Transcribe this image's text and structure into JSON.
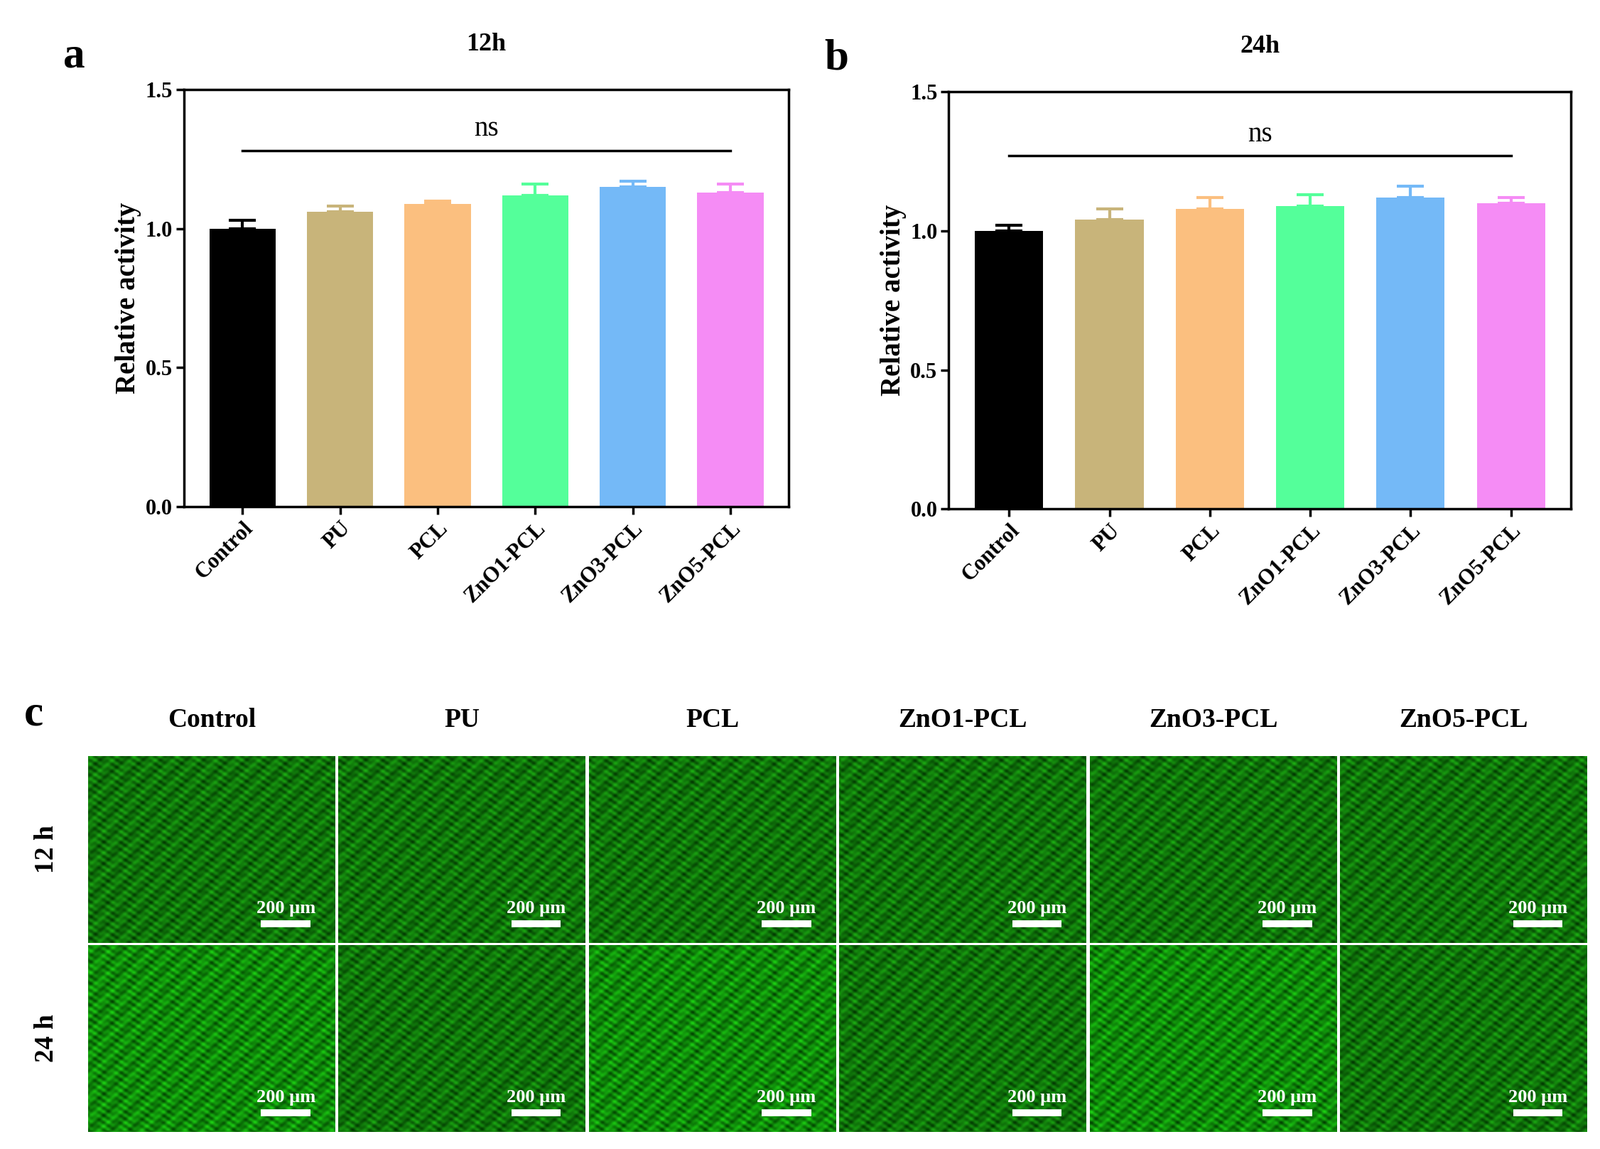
{
  "chart_data": [
    {
      "type": "bar",
      "panel_label": "a",
      "title": "12h",
      "y_label": "Relative activity",
      "categories": [
        "Control",
        "PU",
        "PCL",
        "ZnO1-PCL",
        "ZnO3-PCL",
        "ZnO5-PCL"
      ],
      "values": [
        1.0,
        1.06,
        1.09,
        1.12,
        1.15,
        1.13
      ],
      "errors": [
        0.03,
        0.02,
        0.01,
        0.04,
        0.02,
        0.03
      ],
      "colors": [
        "#000000",
        "#c8b47a",
        "#fbbf7f",
        "#54ff9a",
        "#74b9f7",
        "#f58cf5"
      ],
      "ylim": [
        0,
        1.5
      ],
      "yticks": [
        {
          "value": 0,
          "label": "0.0"
        },
        0.5,
        {
          "value": 1,
          "label": "1.0"
        },
        1.5
      ],
      "annotations": [
        {
          "text": "ns"
        }
      ]
    },
    {
      "type": "bar",
      "panel_label": "b",
      "title": "24h",
      "y_label": "Relative activity",
      "categories": [
        "Control",
        "PU",
        "PCL",
        "ZnO1-PCL",
        "ZnO3-PCL",
        "ZnO5-PCL"
      ],
      "values": [
        1.0,
        1.04,
        1.08,
        1.09,
        1.12,
        1.1
      ],
      "errors": [
        0.02,
        0.04,
        0.04,
        0.04,
        0.04,
        0.02
      ],
      "colors": [
        "#000000",
        "#c8b47a",
        "#fbbf7f",
        "#54ff9a",
        "#74b9f7",
        "#f58cf5"
      ],
      "ylim": [
        0,
        1.5
      ],
      "yticks": [
        {
          "value": 0,
          "label": "0.0"
        },
        0.5,
        {
          "value": 1,
          "label": "1.0"
        },
        1.5
      ],
      "annotations": [
        {
          "text": "ns"
        }
      ]
    }
  ],
  "image_panel": {
    "panel_label": "c",
    "columns": [
      "Control",
      "PU",
      "PCL",
      "ZnO1-PCL",
      "ZnO3-PCL",
      "ZnO5-PCL"
    ],
    "rows": [
      "12 h",
      "24 h"
    ],
    "scale_bar": "200 µm"
  }
}
